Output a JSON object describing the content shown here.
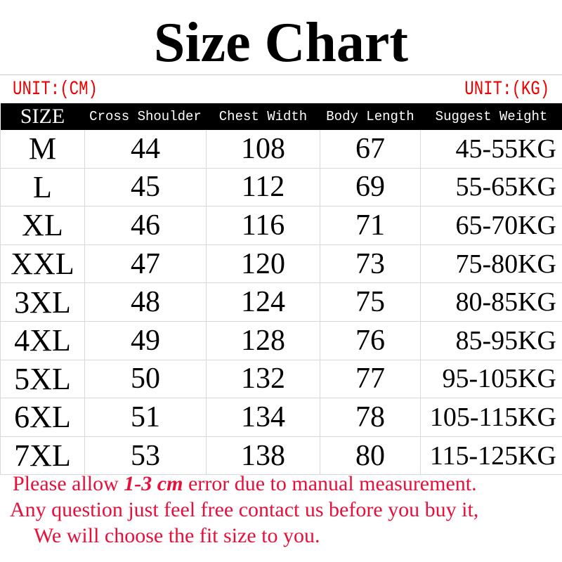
{
  "title": "Size Chart",
  "unit_left": "UNIT:(CM)",
  "unit_right": "UNIT:(KG)",
  "headers": [
    "SIZE",
    "Cross Shoulder",
    "Chest Width",
    "Body Length",
    "Suggest Weight"
  ],
  "rows": [
    [
      "M",
      "44",
      "108",
      "67",
      "45-55KG"
    ],
    [
      "L",
      "45",
      "112",
      "69",
      "55-65KG"
    ],
    [
      "XL",
      "46",
      "116",
      "71",
      "65-70KG"
    ],
    [
      "XXL",
      "47",
      "120",
      "73",
      "75-80KG"
    ],
    [
      "3XL",
      "48",
      "124",
      "75",
      "80-85KG"
    ],
    [
      "4XL",
      "49",
      "128",
      "76",
      "85-95KG"
    ],
    [
      "5XL",
      "50",
      "132",
      "77",
      "95-105KG"
    ],
    [
      "6XL",
      "51",
      "134",
      "78",
      "105-115KG"
    ],
    [
      "7XL",
      "53",
      "138",
      "80",
      "115-125KG"
    ]
  ],
  "notes": {
    "line1_pre": "Please allow ",
    "line1_bold": "1-3 cm",
    "line1_post": " error due to manual measurement.",
    "line2": "Any question just feel free contact us before you buy it,",
    "line3": "We will choose the fit size to you."
  },
  "colors": {
    "note": "#e8103a",
    "unit": "#e00000",
    "header_bg": "#000000"
  }
}
